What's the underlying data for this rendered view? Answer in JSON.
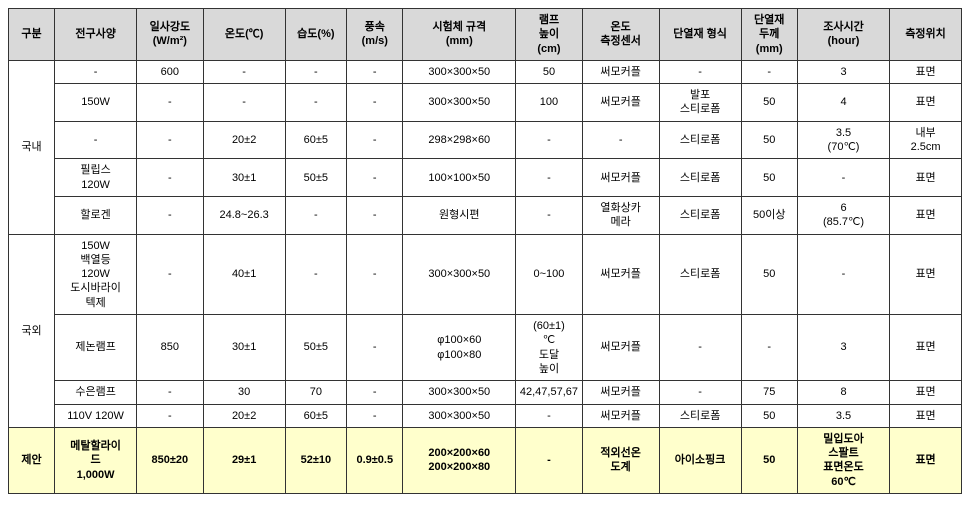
{
  "headers": {
    "gubun": "구분",
    "bulb": "전구사양",
    "irradiance": "일사강도\n(W/m²)",
    "temp": "온도(℃)",
    "humidity": "습도(%)",
    "wind": "풍속\n(m/s)",
    "specimen": "시험체 규격\n(mm)",
    "lamp_height": "램프\n높이\n(cm)",
    "sensor": "온도\n측정센서",
    "insulation": "단열재 형식",
    "thickness": "단열재\n두께\n(mm)",
    "time": "조사시간\n(hour)",
    "position": "측정위치"
  },
  "groups": {
    "domestic": "국내",
    "foreign": "국외",
    "proposal": "제안"
  },
  "rows": {
    "d1": {
      "bulb": "-",
      "irr": "600",
      "temp": "-",
      "hum": "-",
      "wind": "-",
      "spec": "300×300×50",
      "lamp": "50",
      "sensor": "써모커플",
      "ins": "-",
      "thick": "-",
      "time": "3",
      "pos": "표면"
    },
    "d2": {
      "bulb": "150W",
      "irr": "-",
      "temp": "-",
      "hum": "-",
      "wind": "-",
      "spec": "300×300×50",
      "lamp": "100",
      "sensor": "써모커플",
      "ins": "발포\n스티로폼",
      "thick": "50",
      "time": "4",
      "pos": "표면"
    },
    "d3": {
      "bulb": "-",
      "irr": "-",
      "temp": "20±2",
      "hum": "60±5",
      "wind": "-",
      "spec": "298×298×60",
      "lamp": "-",
      "sensor": "-",
      "ins": "스티로폼",
      "thick": "50",
      "time": "3.5\n(70℃)",
      "pos": "내부\n2.5cm"
    },
    "d4": {
      "bulb": "필립스\n120W",
      "irr": "-",
      "temp": "30±1",
      "hum": "50±5",
      "wind": "-",
      "spec": "100×100×50",
      "lamp": "-",
      "sensor": "써모커플",
      "ins": "스티로폼",
      "thick": "50",
      "time": "-",
      "pos": "표면"
    },
    "d5": {
      "bulb": "할로겐",
      "irr": "-",
      "temp": "24.8~26.3",
      "hum": "-",
      "wind": "-",
      "spec": "원형시편",
      "lamp": "-",
      "sensor": "열화상카\n메라",
      "ins": "스티로폼",
      "thick": "50이상",
      "time": "6\n(85.7℃)",
      "pos": "표면"
    },
    "f1": {
      "bulb": "150W\n백열등\n120W\n도시바라이\n텍제",
      "irr": "-",
      "temp": "40±1",
      "hum": "-",
      "wind": "-",
      "spec": "300×300×50",
      "lamp": "0~100",
      "sensor": "써모커플",
      "ins": "스티로폼",
      "thick": "50",
      "time": "-",
      "pos": "표면"
    },
    "f2": {
      "bulb": "제논램프",
      "irr": "850",
      "temp": "30±1",
      "hum": "50±5",
      "wind": "-",
      "spec": "φ100×60\nφ100×80",
      "lamp": "(60±1)\n℃\n도달\n높이",
      "sensor": "써모커플",
      "ins": "-",
      "thick": "-",
      "time": "3",
      "pos": "표면"
    },
    "f3": {
      "bulb": "수은램프",
      "irr": "-",
      "temp": "30",
      "hum": "70",
      "wind": "-",
      "spec": "300×300×50",
      "lamp": "42,47,57,67",
      "sensor": "써모커플",
      "ins": "-",
      "thick": "75",
      "time": "8",
      "pos": "표면"
    },
    "f4": {
      "bulb": "110V 120W",
      "irr": "-",
      "temp": "20±2",
      "hum": "60±5",
      "wind": "-",
      "spec": "300×300×50",
      "lamp": "-",
      "sensor": "써모커플",
      "ins": "스티로폼",
      "thick": "50",
      "time": "3.5",
      "pos": "표면"
    },
    "p1": {
      "bulb": "메탈할라이\n드\n1,000W",
      "irr": "850±20",
      "temp": "29±1",
      "hum": "52±10",
      "wind": "0.9±0.5",
      "spec": "200×200×60\n200×200×80",
      "lamp": "-",
      "sensor": "적외선온\n도계",
      "ins": "아이소핑크",
      "thick": "50",
      "time": "밀입도아\n스팔트\n표면온도\n60℃",
      "pos": "표면"
    }
  },
  "colors": {
    "header_bg": "#d9d9d9",
    "highlight_bg": "#ffffcc",
    "border": "#333333"
  }
}
